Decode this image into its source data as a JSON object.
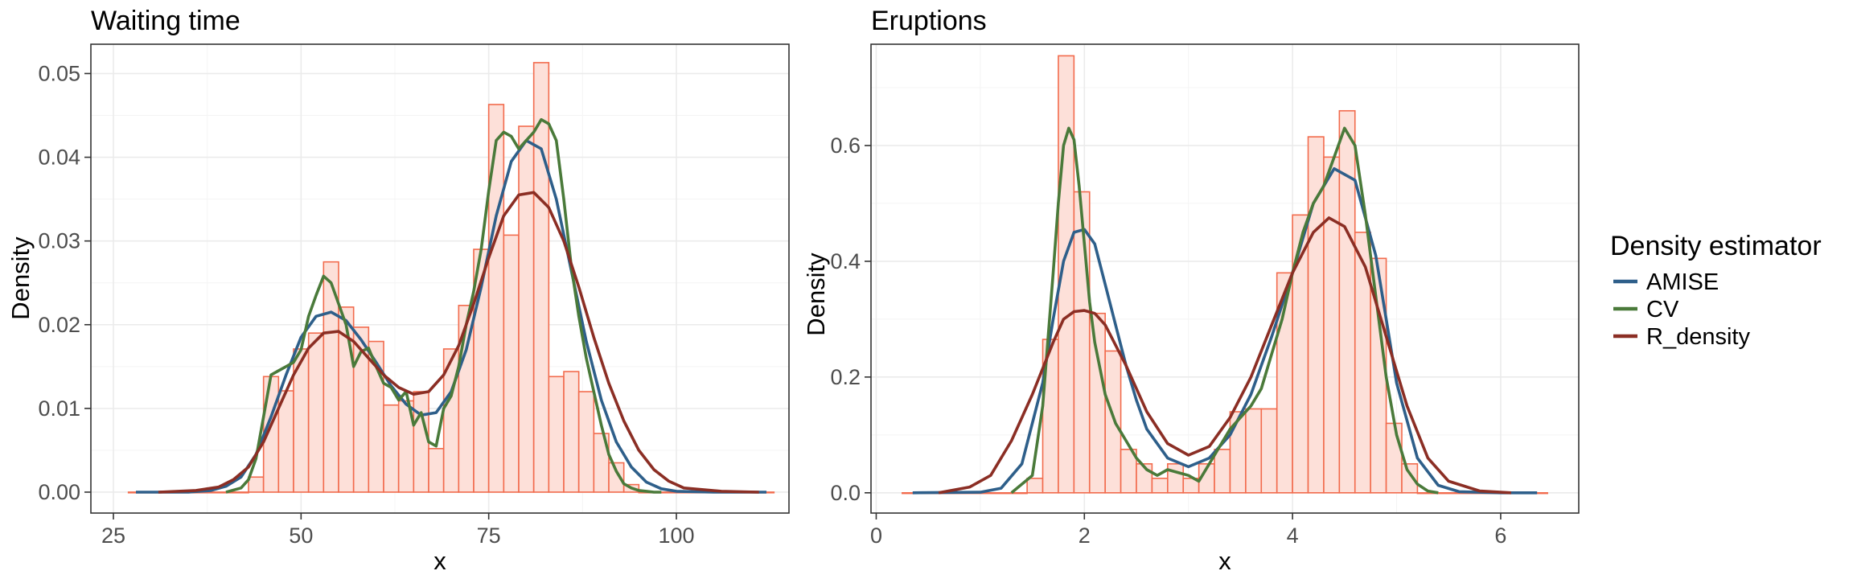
{
  "chart_data": [
    {
      "type": "histogram+line",
      "title": "Waiting time",
      "xlabel": "x",
      "ylabel": "Density",
      "xlim": [
        22,
        115
      ],
      "ylim": [
        -0.0025,
        0.0535
      ],
      "xticks": [
        25,
        50,
        75,
        100
      ],
      "yticks": [
        0.0,
        0.01,
        0.02,
        0.03,
        0.04,
        0.05
      ],
      "ytick_labels": [
        "0.00",
        "0.01",
        "0.02",
        "0.03",
        "0.04",
        "0.05"
      ],
      "grid": true,
      "histogram": {
        "fill": "#fde0d9",
        "stroke": "#f26b4d",
        "bins": [
          {
            "left": 27,
            "right": 43,
            "value": 0.0
          },
          {
            "left": 43,
            "right": 45,
            "value": 0.0018
          },
          {
            "left": 45,
            "right": 47,
            "value": 0.0138
          },
          {
            "left": 47,
            "right": 49,
            "value": 0.0121
          },
          {
            "left": 49,
            "right": 51,
            "value": 0.0171
          },
          {
            "left": 51,
            "right": 53,
            "value": 0.019
          },
          {
            "left": 53,
            "right": 55,
            "value": 0.0275
          },
          {
            "left": 55,
            "right": 57,
            "value": 0.0221
          },
          {
            "left": 57,
            "right": 59,
            "value": 0.0197
          },
          {
            "left": 59,
            "right": 61,
            "value": 0.018
          },
          {
            "left": 61,
            "right": 63,
            "value": 0.0104
          },
          {
            "left": 63,
            "right": 65,
            "value": 0.0109
          },
          {
            "left": 65,
            "right": 67,
            "value": 0.012
          },
          {
            "left": 67,
            "right": 69,
            "value": 0.0052
          },
          {
            "left": 69,
            "right": 71,
            "value": 0.0171
          },
          {
            "left": 71,
            "right": 73,
            "value": 0.0223
          },
          {
            "left": 73,
            "right": 75,
            "value": 0.029
          },
          {
            "left": 75,
            "right": 77,
            "value": 0.0463
          },
          {
            "left": 77,
            "right": 79,
            "value": 0.0307
          },
          {
            "left": 79,
            "right": 81,
            "value": 0.0437
          },
          {
            "left": 81,
            "right": 83,
            "value": 0.0513
          },
          {
            "left": 83,
            "right": 85,
            "value": 0.0138
          },
          {
            "left": 85,
            "right": 87,
            "value": 0.0144
          },
          {
            "left": 87,
            "right": 89,
            "value": 0.012
          },
          {
            "left": 89,
            "right": 91,
            "value": 0.007
          },
          {
            "left": 91,
            "right": 93,
            "value": 0.0035
          },
          {
            "left": 93,
            "right": 95,
            "value": 0.0009
          },
          {
            "left": 95,
            "right": 113,
            "value": 0.0
          }
        ]
      },
      "series": [
        {
          "name": "AMISE",
          "color": "#2e5f8a",
          "x": [
            28,
            35,
            38,
            40,
            42,
            44,
            46,
            48,
            50,
            52,
            54,
            56,
            58,
            60,
            62,
            64,
            66,
            68,
            70,
            72,
            74,
            76,
            78,
            80,
            82,
            84,
            86,
            88,
            90,
            92,
            94,
            96,
            98,
            100,
            105,
            112
          ],
          "y": [
            0,
            0,
            0.0002,
            0.0007,
            0.0018,
            0.0045,
            0.009,
            0.014,
            0.0185,
            0.021,
            0.0215,
            0.0205,
            0.0182,
            0.0155,
            0.0127,
            0.0105,
            0.0092,
            0.0095,
            0.012,
            0.017,
            0.0245,
            0.033,
            0.0395,
            0.042,
            0.041,
            0.035,
            0.0265,
            0.018,
            0.011,
            0.006,
            0.003,
            0.0012,
            0.0004,
            0.0001,
            0,
            0
          ]
        },
        {
          "name": "CV",
          "color": "#4a7a3a",
          "x": [
            40,
            42,
            43,
            44,
            45,
            46,
            47,
            48,
            49,
            50,
            51,
            52,
            53,
            54,
            55,
            56,
            57,
            58,
            59,
            60,
            61,
            62,
            63,
            64,
            65,
            66,
            67,
            68,
            69,
            70,
            71,
            72,
            73,
            74,
            75,
            76,
            77,
            78,
            79,
            80,
            81,
            82,
            83,
            84,
            85,
            86,
            87,
            88,
            89,
            90,
            91,
            92,
            93,
            94,
            95,
            96,
            97,
            98
          ],
          "y": [
            0,
            0.0005,
            0.0015,
            0.004,
            0.009,
            0.014,
            0.0145,
            0.015,
            0.0155,
            0.017,
            0.021,
            0.0235,
            0.0258,
            0.025,
            0.0225,
            0.02,
            0.015,
            0.0168,
            0.0172,
            0.015,
            0.013,
            0.0125,
            0.011,
            0.012,
            0.008,
            0.0095,
            0.006,
            0.0055,
            0.01,
            0.0115,
            0.015,
            0.02,
            0.024,
            0.029,
            0.036,
            0.042,
            0.043,
            0.0425,
            0.041,
            0.042,
            0.043,
            0.0445,
            0.044,
            0.042,
            0.035,
            0.027,
            0.021,
            0.016,
            0.012,
            0.008,
            0.0045,
            0.0025,
            0.001,
            0.0005,
            0.0002,
            0.0001,
            0,
            0
          ]
        },
        {
          "name": "R_density",
          "color": "#8b2e24",
          "x": [
            31,
            36,
            39,
            41,
            43,
            45,
            47,
            49,
            51,
            53,
            55,
            57,
            59,
            61,
            63,
            65,
            67,
            69,
            71,
            73,
            75,
            77,
            79,
            81,
            83,
            85,
            87,
            89,
            91,
            93,
            95,
            97,
            99,
            101,
            106,
            111
          ],
          "y": [
            0,
            0.0002,
            0.0006,
            0.0015,
            0.003,
            0.006,
            0.01,
            0.014,
            0.0172,
            0.019,
            0.0192,
            0.018,
            0.016,
            0.014,
            0.0125,
            0.0117,
            0.012,
            0.014,
            0.0175,
            0.0225,
            0.028,
            0.033,
            0.0355,
            0.0358,
            0.034,
            0.03,
            0.0245,
            0.0185,
            0.013,
            0.0085,
            0.005,
            0.0027,
            0.0013,
            0.0005,
            0.0001,
            0
          ]
        }
      ]
    },
    {
      "type": "histogram+line",
      "title": "Eruptions",
      "xlabel": "x",
      "ylabel": "Density",
      "xlim": [
        -0.05,
        6.75
      ],
      "ylim": [
        -0.035,
        0.775
      ],
      "xticks": [
        0,
        2,
        4,
        6
      ],
      "yticks": [
        0.0,
        0.2,
        0.4,
        0.6
      ],
      "ytick_labels": [
        "0.0",
        "0.2",
        "0.4",
        "0.6"
      ],
      "grid": true,
      "histogram": {
        "fill": "#fde0d9",
        "stroke": "#f26b4d",
        "bins": [
          {
            "left": 0.25,
            "right": 1.45,
            "value": 0.0
          },
          {
            "left": 1.45,
            "right": 1.6,
            "value": 0.025
          },
          {
            "left": 1.6,
            "right": 1.75,
            "value": 0.265
          },
          {
            "left": 1.75,
            "right": 1.9,
            "value": 0.755
          },
          {
            "left": 1.9,
            "right": 2.05,
            "value": 0.52
          },
          {
            "left": 2.05,
            "right": 2.2,
            "value": 0.31
          },
          {
            "left": 2.2,
            "right": 2.35,
            "value": 0.245
          },
          {
            "left": 2.35,
            "right": 2.5,
            "value": 0.075
          },
          {
            "left": 2.5,
            "right": 2.65,
            "value": 0.05
          },
          {
            "left": 2.65,
            "right": 2.8,
            "value": 0.025
          },
          {
            "left": 2.8,
            "right": 2.95,
            "value": 0.05
          },
          {
            "left": 2.95,
            "right": 3.1,
            "value": 0.025
          },
          {
            "left": 3.1,
            "right": 3.25,
            "value": 0.05
          },
          {
            "left": 3.25,
            "right": 3.4,
            "value": 0.075
          },
          {
            "left": 3.4,
            "right": 3.55,
            "value": 0.14
          },
          {
            "left": 3.55,
            "right": 3.7,
            "value": 0.145
          },
          {
            "left": 3.7,
            "right": 3.85,
            "value": 0.145
          },
          {
            "left": 3.85,
            "right": 4.0,
            "value": 0.38
          },
          {
            "left": 4.0,
            "right": 4.15,
            "value": 0.48
          },
          {
            "left": 4.15,
            "right": 4.3,
            "value": 0.615
          },
          {
            "left": 4.3,
            "right": 4.45,
            "value": 0.58
          },
          {
            "left": 4.45,
            "right": 4.6,
            "value": 0.66
          },
          {
            "left": 4.6,
            "right": 4.75,
            "value": 0.45
          },
          {
            "left": 4.75,
            "right": 4.9,
            "value": 0.405
          },
          {
            "left": 4.9,
            "right": 5.05,
            "value": 0.12
          },
          {
            "left": 5.05,
            "right": 5.2,
            "value": 0.05
          },
          {
            "left": 5.2,
            "right": 6.45,
            "value": 0.0
          }
        ]
      },
      "series": [
        {
          "name": "AMISE",
          "color": "#2e5f8a",
          "x": [
            0.35,
            1.0,
            1.2,
            1.4,
            1.6,
            1.7,
            1.8,
            1.9,
            2.0,
            2.1,
            2.2,
            2.3,
            2.4,
            2.5,
            2.6,
            2.8,
            3.0,
            3.2,
            3.4,
            3.6,
            3.8,
            4.0,
            4.2,
            4.4,
            4.6,
            4.8,
            4.9,
            5.0,
            5.2,
            5.4,
            5.6,
            6.0,
            6.35
          ],
          "y": [
            0,
            0.001,
            0.008,
            0.05,
            0.19,
            0.3,
            0.4,
            0.45,
            0.455,
            0.43,
            0.36,
            0.29,
            0.22,
            0.16,
            0.11,
            0.06,
            0.045,
            0.06,
            0.1,
            0.17,
            0.27,
            0.38,
            0.5,
            0.56,
            0.54,
            0.41,
            0.3,
            0.19,
            0.06,
            0.013,
            0.002,
            0,
            0
          ]
        },
        {
          "name": "CV",
          "color": "#4a7a3a",
          "x": [
            1.3,
            1.5,
            1.6,
            1.7,
            1.75,
            1.8,
            1.85,
            1.9,
            1.95,
            2.0,
            2.05,
            2.1,
            2.2,
            2.3,
            2.4,
            2.5,
            2.6,
            2.7,
            2.8,
            2.9,
            3.0,
            3.1,
            3.2,
            3.3,
            3.4,
            3.5,
            3.6,
            3.7,
            3.8,
            3.9,
            4.0,
            4.1,
            4.2,
            4.3,
            4.4,
            4.5,
            4.6,
            4.7,
            4.8,
            4.9,
            5.0,
            5.1,
            5.2,
            5.3,
            5.4
          ],
          "y": [
            0,
            0.03,
            0.15,
            0.38,
            0.5,
            0.6,
            0.63,
            0.61,
            0.53,
            0.43,
            0.33,
            0.26,
            0.17,
            0.12,
            0.09,
            0.06,
            0.04,
            0.03,
            0.04,
            0.035,
            0.03,
            0.02,
            0.05,
            0.08,
            0.11,
            0.13,
            0.15,
            0.18,
            0.24,
            0.3,
            0.38,
            0.45,
            0.5,
            0.53,
            0.58,
            0.63,
            0.6,
            0.48,
            0.34,
            0.2,
            0.1,
            0.04,
            0.015,
            0.003,
            0
          ]
        },
        {
          "name": "R_density",
          "color": "#8b2e24",
          "x": [
            0.6,
            0.9,
            1.1,
            1.3,
            1.5,
            1.7,
            1.8,
            1.9,
            2.0,
            2.1,
            2.2,
            2.4,
            2.6,
            2.8,
            3.0,
            3.2,
            3.4,
            3.6,
            3.8,
            4.0,
            4.2,
            4.35,
            4.5,
            4.7,
            4.9,
            5.1,
            5.3,
            5.5,
            5.8,
            6.1
          ],
          "y": [
            0,
            0.01,
            0.03,
            0.09,
            0.17,
            0.26,
            0.3,
            0.313,
            0.315,
            0.31,
            0.29,
            0.22,
            0.14,
            0.085,
            0.065,
            0.08,
            0.13,
            0.2,
            0.29,
            0.38,
            0.45,
            0.475,
            0.46,
            0.39,
            0.27,
            0.15,
            0.06,
            0.02,
            0.003,
            0
          ]
        }
      ]
    }
  ],
  "legend": {
    "title": "Density estimator",
    "items": [
      {
        "label": "AMISE",
        "color": "#2e5f8a"
      },
      {
        "label": "CV",
        "color": "#4a7a3a"
      },
      {
        "label": "R_density",
        "color": "#8b2e24"
      }
    ]
  }
}
